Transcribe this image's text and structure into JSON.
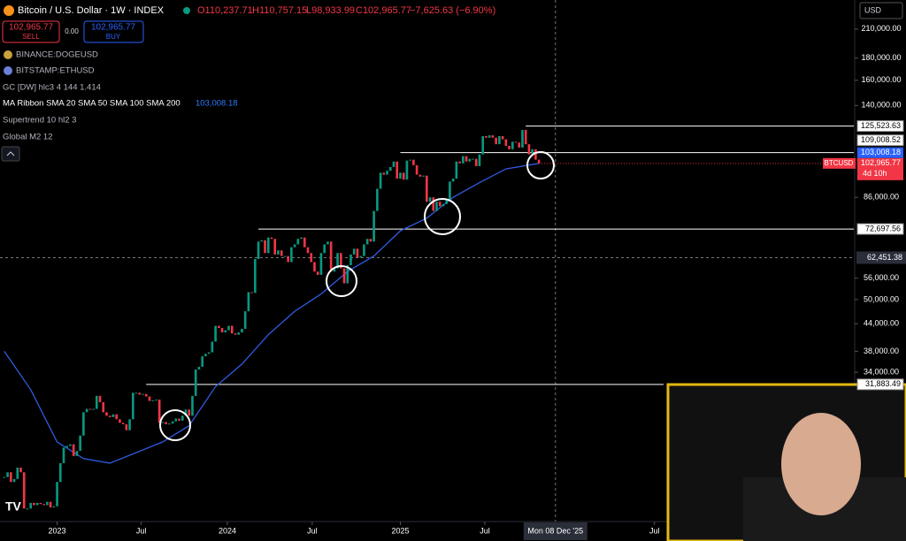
{
  "ui": {
    "symbol_title": "Bitcoin / U.S. Dollar · 1W · INDEX",
    "ohlc": [
      "O110,237.71",
      "H110,757.15",
      "L98,933.99",
      "C102,965.77",
      "−7,625.63 (−6.90%)"
    ],
    "sell_price": "102,965.77",
    "sell": "SELL",
    "spread": "0.00",
    "buy_price": "102,965.77",
    "buy": "BUY",
    "indicators": [
      "BINANCE:DOGEUSD",
      "BITSTAMP:ETHUSD",
      "GC [DW] hlc3 4 144 1.414",
      "MA Ribbon SMA 20 SMA 50 SMA 100 SMA 200",
      "Supertrend 10 hl2 3",
      "Global M2 12"
    ],
    "ma_value": "103,008.18",
    "currency": "USD"
  },
  "chart_data": {
    "type": "candlestick",
    "log_scale": true,
    "up_color": "#089981",
    "down_color": "#f23645",
    "closes": [
      19500,
      20000,
      19000,
      19300,
      20500,
      20000,
      16500,
      16500,
      17000,
      16800,
      17000,
      16900,
      16800,
      17100,
      16600,
      16700,
      19000,
      21000,
      22800,
      23000,
      23200,
      21800,
      22400,
      24300,
      27500,
      28000,
      27900,
      28000,
      30000,
      29000,
      27500,
      27000,
      26800,
      27200,
      26500,
      26000,
      25800,
      25000,
      26500,
      30500,
      30500,
      30200,
      30300,
      29900,
      29200,
      29300,
      29400,
      26000,
      26100,
      25800,
      25900,
      26200,
      26600,
      26300,
      27000,
      27900,
      27000,
      30000,
      34500,
      35000,
      37000,
      37500,
      37800,
      40000,
      43500,
      43000,
      42000,
      42500,
      43500,
      41800,
      41500,
      42000,
      42800,
      47000,
      52000,
      51800,
      62000,
      68000,
      68500,
      64000,
      69500,
      69000,
      63500,
      64900,
      63000,
      63000,
      61000,
      66000,
      67000,
      69000,
      69500,
      66000,
      64000,
      61000,
      58000,
      57000,
      64000,
      67000,
      68000,
      58000,
      59000,
      64000,
      59000,
      54500,
      60000,
      63500,
      65500,
      62500,
      63000,
      67000,
      69000,
      68000,
      80000,
      90000,
      98000,
      97000,
      99000,
      101000,
      104000,
      95000,
      98000,
      94500,
      104500,
      105000,
      102000,
      97000,
      96000,
      96500,
      84000,
      86000,
      80000,
      84000,
      82000,
      83000,
      85000,
      93500,
      95000,
      104000,
      103000,
      107000,
      104000,
      105500,
      105500,
      101500,
      108000,
      119000,
      118000,
      119500,
      118000,
      114000,
      119000,
      117000,
      113000,
      111000,
      115500,
      115000,
      112000,
      123000,
      114000,
      108000,
      111000,
      105000,
      102965.77
    ],
    "last_label": "102,965.77",
    "last_symbol": "BTCUSD",
    "countdown": "4d 10h",
    "ma": {
      "color": "#2f5be0",
      "x": [
        0,
        8,
        16,
        24,
        32,
        40,
        48,
        56,
        64,
        72,
        80,
        88,
        96,
        104,
        112,
        120,
        128,
        136,
        144,
        152,
        162
      ],
      "values": [
        38000,
        31000,
        23500,
        21500,
        21000,
        22200,
        23500,
        25600,
        31500,
        35500,
        41500,
        47000,
        51500,
        58000,
        63000,
        72000,
        77000,
        86000,
        93000,
        100000,
        103008.18
      ]
    },
    "xlim": [
      -1.3,
      257.4
    ],
    "ylim": [
      15400,
      245000
    ],
    "yticks": [
      {
        "value": 210000,
        "label": "210,000.00"
      },
      {
        "value": 180000,
        "label": "180,000.00"
      },
      {
        "value": 160000,
        "label": "160,000.00"
      },
      {
        "value": 140000,
        "label": "140,000.00"
      },
      {
        "value": 86000,
        "label": "86,000.00"
      },
      {
        "value": 56000,
        "label": "56,000.00"
      },
      {
        "value": 50000,
        "label": "50,000.00"
      },
      {
        "value": 44000,
        "label": "44,000.00"
      },
      {
        "value": 38000,
        "label": "38,000.00"
      },
      {
        "value": 34000,
        "label": "34,000.00"
      }
    ],
    "xticks": [
      {
        "value": 16,
        "label": "2023"
      },
      {
        "value": 41.5,
        "label": "Jul"
      },
      {
        "value": 67.6,
        "label": "2024"
      },
      {
        "value": 93.3,
        "label": "Jul"
      },
      {
        "value": 120,
        "label": "2025"
      },
      {
        "value": 145.6,
        "label": "Jul"
      },
      {
        "value": 197,
        "label": "Jul"
      }
    ],
    "levels": [
      {
        "value": 125523.63,
        "label": "125,523.63",
        "from": 158
      },
      {
        "value": 109008.52,
        "label": "109,008.52",
        "from": 120
      },
      {
        "value": 72697.56,
        "label": "72,697.56",
        "from": 77
      },
      {
        "value": 31883.49,
        "label": "31,883.49",
        "from": 43
      }
    ],
    "crosshair": {
      "value": 62451.38,
      "label": "62,451.38",
      "x": 167,
      "x_label": "Mon 08 Dec '25"
    }
  }
}
